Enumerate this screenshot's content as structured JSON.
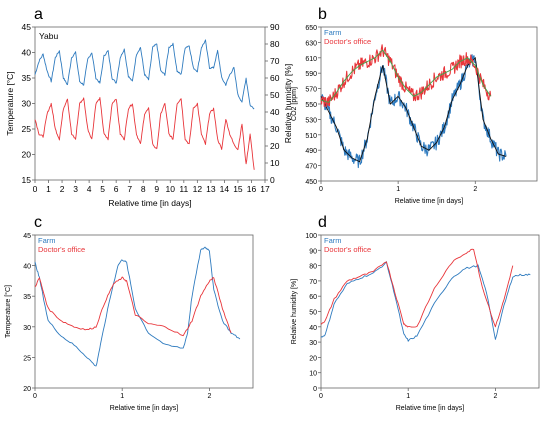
{
  "panel_letters": [
    "a",
    "b",
    "c",
    "d"
  ],
  "colors": {
    "blue": "#2f7bbf",
    "red": "#e8353a",
    "black": "#111111",
    "green": "#3aa84a"
  },
  "chart_data": [
    {
      "id": "a",
      "type": "line",
      "annotation": "Yabu",
      "xlabel": "Relative time [in days]",
      "ylabel": "Temperature [°C]",
      "y2label": "Relative humidity [%]",
      "xlim": [
        0,
        17
      ],
      "ylim": [
        15,
        45
      ],
      "y2lim": [
        0,
        90
      ],
      "xticks": [
        "0",
        "1",
        "2",
        "3",
        "4",
        "5",
        "6",
        "7",
        "8",
        "9",
        "10",
        "11",
        "12",
        "13",
        "14",
        "15",
        "16",
        "17"
      ],
      "yticks": [
        "15",
        "20",
        "25",
        "30",
        "35",
        "40",
        "45"
      ],
      "y2ticks": [
        "0",
        "10",
        "20",
        "30",
        "40",
        "50",
        "60",
        "70",
        "80",
        "90"
      ],
      "grid": false,
      "series": [
        {
          "axis": "right",
          "color": "#2f7bbf",
          "x": [
            0,
            0.3,
            0.6,
            0.9,
            1.2,
            1.5,
            1.8,
            2.1,
            2.4,
            2.7,
            3.0,
            3.3,
            3.6,
            3.9,
            4.2,
            4.5,
            4.8,
            5.1,
            5.4,
            5.7,
            6.0,
            6.3,
            6.6,
            6.9,
            7.2,
            7.5,
            7.8,
            8.1,
            8.4,
            8.7,
            9.0,
            9.3,
            9.6,
            9.9,
            10.2,
            10.5,
            10.8,
            11.1,
            11.4,
            11.7,
            12.0,
            12.3,
            12.6,
            12.9,
            13.2,
            13.5,
            13.8,
            14.1,
            14.4,
            14.7,
            15.0,
            15.3,
            15.6,
            15.9,
            16.2
          ],
          "y": [
            62,
            70,
            74,
            64,
            58,
            72,
            76,
            60,
            56,
            72,
            75,
            58,
            56,
            71,
            75,
            60,
            57,
            73,
            76,
            60,
            57,
            72,
            77,
            61,
            58,
            74,
            78,
            62,
            59,
            78,
            80,
            64,
            62,
            78,
            80,
            64,
            62,
            78,
            79,
            66,
            64,
            78,
            82,
            66,
            66,
            76,
            60,
            56,
            62,
            66,
            50,
            46,
            60,
            44,
            42
          ]
        },
        {
          "axis": "left",
          "color": "#e8353a",
          "x": [
            0,
            0.3,
            0.6,
            0.9,
            1.2,
            1.5,
            1.8,
            2.1,
            2.4,
            2.7,
            3.0,
            3.3,
            3.6,
            3.9,
            4.2,
            4.5,
            4.8,
            5.1,
            5.4,
            5.7,
            6.0,
            6.3,
            6.6,
            6.9,
            7.2,
            7.5,
            7.8,
            8.1,
            8.4,
            8.7,
            9.0,
            9.3,
            9.6,
            9.9,
            10.2,
            10.5,
            10.8,
            11.1,
            11.4,
            11.7,
            12.0,
            12.3,
            12.6,
            12.9,
            13.2,
            13.5,
            13.8,
            14.1,
            14.4,
            14.7,
            15.0,
            15.3,
            15.6,
            15.9,
            16.2
          ],
          "y": [
            27,
            24,
            23.5,
            28,
            30,
            25,
            23,
            29,
            31,
            24,
            23,
            30,
            31,
            25,
            23,
            30,
            31,
            24,
            23,
            30,
            31,
            24,
            23,
            29,
            30,
            24,
            22,
            28,
            29,
            22,
            21,
            28,
            30,
            24,
            23,
            30,
            31,
            23,
            22,
            29,
            30,
            24,
            22,
            28,
            29,
            23,
            21,
            27,
            24,
            22,
            21,
            26,
            18,
            24,
            17
          ]
        }
      ]
    },
    {
      "id": "b",
      "type": "line",
      "xlabel": "Relative time [in days]",
      "ylabel": "CO2 [ppm]",
      "xlim": [
        0,
        2.8
      ],
      "ylim": [
        450,
        650
      ],
      "xticks": [
        "0",
        "1",
        "2"
      ],
      "yticks": [
        "450",
        "470",
        "490",
        "510",
        "530",
        "550",
        "570",
        "590",
        "610",
        "630",
        "650"
      ],
      "grid": false,
      "legend": [
        "Farm",
        "Doctor's office"
      ],
      "legend_position": "top-left",
      "series": [
        {
          "name": "Farm",
          "color": "#2f7bbf",
          "x": [
            0,
            0.1,
            0.2,
            0.3,
            0.4,
            0.5,
            0.6,
            0.7,
            0.8,
            0.9,
            1.0,
            1.1,
            1.2,
            1.3,
            1.4,
            1.5,
            1.6,
            1.7,
            1.8,
            1.9,
            2.0,
            2.1,
            2.2,
            2.3,
            2.4
          ],
          "y": [
            560,
            540,
            520,
            490,
            480,
            475,
            505,
            560,
            600,
            550,
            560,
            545,
            520,
            495,
            490,
            500,
            520,
            555,
            575,
            600,
            610,
            530,
            505,
            485,
            482
          ]
        },
        {
          "name": "Doctor's office",
          "color": "#e8353a",
          "x": [
            0,
            0.1,
            0.2,
            0.3,
            0.4,
            0.5,
            0.6,
            0.7,
            0.8,
            0.9,
            1.0,
            1.1,
            1.2,
            1.3,
            1.4,
            1.5,
            1.6,
            1.7,
            1.8,
            1.9,
            2.0,
            2.1,
            2.2
          ],
          "y": [
            555,
            552,
            565,
            580,
            592,
            600,
            605,
            610,
            620,
            605,
            585,
            570,
            560,
            565,
            575,
            585,
            590,
            595,
            605,
            610,
            600,
            575,
            560
          ]
        }
      ]
    },
    {
      "id": "c",
      "type": "line",
      "xlabel": "Relative time [in days]",
      "ylabel": "Temperature [°C]",
      "xlim": [
        0,
        2.5
      ],
      "ylim": [
        20,
        45
      ],
      "xticks": [
        "0",
        "1",
        "2"
      ],
      "yticks": [
        "20",
        "25",
        "30",
        "35",
        "40",
        "45"
      ],
      "grid": false,
      "legend": [
        "Farm",
        "Doctor's office"
      ],
      "legend_position": "top-left",
      "series": [
        {
          "name": "Farm",
          "color": "#2f7bbf",
          "x": [
            0,
            0.05,
            0.15,
            0.3,
            0.45,
            0.6,
            0.7,
            0.75,
            0.85,
            0.95,
            1.0,
            1.05,
            1.15,
            1.3,
            1.5,
            1.7,
            1.75,
            1.8,
            1.9,
            1.95,
            2.0,
            2.05,
            2.15,
            2.25,
            2.35
          ],
          "y": [
            40.5,
            38,
            31,
            28.5,
            27,
            25,
            23.5,
            27,
            34,
            40,
            41,
            40.5,
            33,
            29,
            27,
            26.5,
            29,
            35,
            42.5,
            43,
            42.5,
            36,
            31,
            29,
            28
          ]
        },
        {
          "name": "Doctor's office",
          "color": "#e8353a",
          "x": [
            0,
            0.05,
            0.15,
            0.3,
            0.45,
            0.6,
            0.7,
            0.8,
            0.9,
            1.0,
            1.05,
            1.15,
            1.3,
            1.5,
            1.7,
            1.8,
            1.9,
            2.0,
            2.05,
            2.15,
            2.25
          ],
          "y": [
            36.5,
            38,
            33,
            31,
            30,
            29.5,
            30,
            34,
            37,
            38,
            37.5,
            32,
            30.5,
            30,
            28.5,
            31,
            35,
            37.5,
            38,
            33,
            29
          ]
        }
      ]
    },
    {
      "id": "d",
      "type": "line",
      "xlabel": "Relative time [in days]",
      "ylabel": "Relative humidity [%]",
      "xlim": [
        0,
        2.5
      ],
      "ylim": [
        0,
        100
      ],
      "xticks": [
        "0",
        "1",
        "2"
      ],
      "yticks": [
        "0",
        "10",
        "20",
        "30",
        "40",
        "50",
        "60",
        "70",
        "80",
        "90",
        "100"
      ],
      "grid": false,
      "legend": [
        "Farm",
        "Doctor's office"
      ],
      "legend_position": "top-left",
      "series": [
        {
          "name": "Farm",
          "color": "#2f7bbf",
          "x": [
            0,
            0.05,
            0.15,
            0.3,
            0.45,
            0.6,
            0.75,
            0.85,
            0.95,
            1.0,
            1.1,
            1.3,
            1.5,
            1.65,
            1.8,
            1.9,
            2.0,
            2.1,
            2.2,
            2.3,
            2.4
          ],
          "y": [
            33,
            35,
            55,
            68,
            72,
            75,
            82,
            60,
            35,
            31,
            34,
            55,
            72,
            78,
            80,
            62,
            32,
            54,
            73,
            74,
            74
          ]
        },
        {
          "name": "Doctor's office",
          "color": "#e8353a",
          "x": [
            0,
            0.05,
            0.15,
            0.3,
            0.45,
            0.6,
            0.75,
            0.85,
            0.95,
            1.0,
            1.1,
            1.3,
            1.5,
            1.65,
            1.75,
            1.85,
            2.0,
            2.1,
            2.2
          ],
          "y": [
            42,
            44,
            58,
            70,
            73,
            76,
            83,
            62,
            42,
            40,
            40,
            65,
            82,
            88,
            91,
            66,
            40,
            58,
            80
          ]
        }
      ]
    }
  ]
}
